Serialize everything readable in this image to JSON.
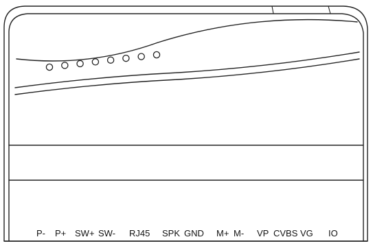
{
  "device": {
    "led_count": 8,
    "ports": [
      {
        "id": "p-minus",
        "label": "P-"
      },
      {
        "id": "p-plus",
        "label": "P+"
      },
      {
        "id": "sw-plus",
        "label": "SW+"
      },
      {
        "id": "sw-minus",
        "label": "SW-"
      },
      {
        "id": "rj45",
        "label": "RJ45"
      },
      {
        "id": "spk",
        "label": "SPK"
      },
      {
        "id": "gnd",
        "label": "GND"
      },
      {
        "id": "m-plus",
        "label": "M+"
      },
      {
        "id": "m-minus",
        "label": "M-"
      },
      {
        "id": "vp",
        "label": "VP"
      },
      {
        "id": "cvbs",
        "label": "CVBS"
      },
      {
        "id": "vg",
        "label": "VG"
      },
      {
        "id": "io",
        "label": "IO"
      }
    ]
  }
}
